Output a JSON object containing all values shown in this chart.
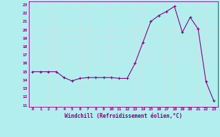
{
  "x_values": [
    0,
    1,
    2,
    3,
    4,
    5,
    6,
    7,
    8,
    9,
    10,
    11,
    12,
    13,
    14,
    15,
    16,
    17,
    18,
    19,
    20,
    21,
    22,
    23
  ],
  "y_values": [
    15.0,
    15.0,
    15.0,
    15.0,
    14.3,
    13.9,
    14.2,
    14.3,
    14.3,
    14.3,
    14.3,
    14.2,
    14.2,
    16.0,
    18.5,
    21.0,
    21.7,
    22.2,
    22.8,
    19.7,
    21.5,
    20.1,
    13.8,
    11.5
  ],
  "line_color": "#800080",
  "marker_color": "#800080",
  "bg_color": "#b2eeee",
  "grid_color": "#c8e8e8",
  "xlabel": "Windchill (Refroidissement éolien,°C)",
  "xlabel_color": "#800080",
  "tick_color": "#800080",
  "ylim": [
    10.8,
    23.4
  ],
  "xlim": [
    -0.5,
    23.5
  ],
  "yticks": [
    11,
    12,
    13,
    14,
    15,
    16,
    17,
    18,
    19,
    20,
    21,
    22,
    23
  ],
  "xticks": [
    0,
    1,
    2,
    3,
    4,
    5,
    6,
    7,
    8,
    9,
    10,
    11,
    12,
    13,
    14,
    15,
    16,
    17,
    18,
    19,
    20,
    21,
    22,
    23
  ]
}
